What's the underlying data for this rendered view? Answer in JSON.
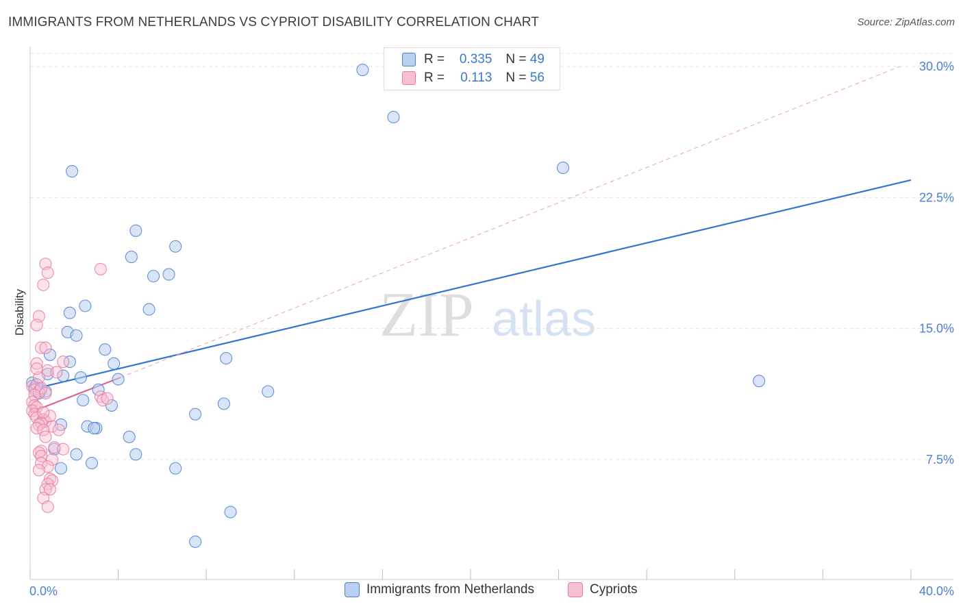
{
  "title": "IMMIGRANTS FROM NETHERLANDS VS CYPRIOT DISABILITY CORRELATION CHART",
  "source": "Source: ZipAtlas.com",
  "watermark": {
    "zip": "ZIP",
    "atlas": "atlas"
  },
  "colors": {
    "blue": "#4a7fd1",
    "blue_fill": "#b9d0f0",
    "blue_line": "#2f74d0",
    "pink": "#e87aa0",
    "pink_fill": "#f7bfd2",
    "pink_line": "#e0628f",
    "grid": "#e3e3e3"
  },
  "legend": {
    "rows": [
      {
        "r_label": "R =",
        "r_value": "0.335",
        "n_label": "N =",
        "n_value": "49"
      },
      {
        "r_label": "R =",
        "r_value": "0.113",
        "n_label": "N =",
        "n_value": "56"
      }
    ]
  },
  "bottom_legend": {
    "series1": "Immigrants from Netherlands",
    "series2": "Cypriots"
  },
  "chart_data": {
    "type": "scatter",
    "title": "IMMIGRANTS FROM NETHERLANDS VS CYPRIOT DISABILITY CORRELATION CHART",
    "xlabel": "",
    "ylabel": "Disability",
    "xlim": [
      0,
      40
    ],
    "ylim": [
      0,
      31
    ],
    "x_tick_labels": [
      "0.0%",
      "40.0%"
    ],
    "y_ticks": [
      7.5,
      15.0,
      22.5,
      30.0
    ],
    "y_tick_labels": [
      "7.5%",
      "15.0%",
      "22.5%",
      "30.0%"
    ],
    "series": [
      {
        "name": "Immigrants from Netherlands",
        "r": 0.335,
        "n": 49,
        "points": [
          [
            15.1,
            29.8
          ],
          [
            16.5,
            27.1
          ],
          [
            1.9,
            24.0
          ],
          [
            24.2,
            24.2
          ],
          [
            4.8,
            20.6
          ],
          [
            6.6,
            19.7
          ],
          [
            4.6,
            19.1
          ],
          [
            6.3,
            18.1
          ],
          [
            5.6,
            18.0
          ],
          [
            2.5,
            16.3
          ],
          [
            5.4,
            16.1
          ],
          [
            1.8,
            15.9
          ],
          [
            1.7,
            14.8
          ],
          [
            2.1,
            14.6
          ],
          [
            3.4,
            13.8
          ],
          [
            0.9,
            13.5
          ],
          [
            1.8,
            13.1
          ],
          [
            3.8,
            13.0
          ],
          [
            8.9,
            13.3
          ],
          [
            0.8,
            12.4
          ],
          [
            1.5,
            12.3
          ],
          [
            2.3,
            12.2
          ],
          [
            4.0,
            12.1
          ],
          [
            0.1,
            11.9
          ],
          [
            0.2,
            11.6
          ],
          [
            0.5,
            11.5
          ],
          [
            3.1,
            11.5
          ],
          [
            0.7,
            11.4
          ],
          [
            10.8,
            11.4
          ],
          [
            2.4,
            10.9
          ],
          [
            33.1,
            12.0
          ],
          [
            8.8,
            10.7
          ],
          [
            3.7,
            10.6
          ],
          [
            7.5,
            10.1
          ],
          [
            1.4,
            9.5
          ],
          [
            2.6,
            9.4
          ],
          [
            3.0,
            9.3
          ],
          [
            2.9,
            9.3
          ],
          [
            4.5,
            8.8
          ],
          [
            1.1,
            8.1
          ],
          [
            2.1,
            7.8
          ],
          [
            4.8,
            7.8
          ],
          [
            2.8,
            7.3
          ],
          [
            1.4,
            7.0
          ],
          [
            6.6,
            7.0
          ],
          [
            9.1,
            4.5
          ],
          [
            7.5,
            2.8
          ],
          [
            0.3,
            11.8
          ],
          [
            0.4,
            11.3
          ]
        ]
      },
      {
        "name": "Cypriots",
        "r": 0.113,
        "n": 56,
        "points": [
          [
            0.7,
            18.7
          ],
          [
            3.2,
            18.4
          ],
          [
            0.8,
            18.2
          ],
          [
            0.6,
            17.5
          ],
          [
            0.4,
            15.7
          ],
          [
            0.3,
            15.2
          ],
          [
            0.5,
            13.9
          ],
          [
            0.7,
            13.9
          ],
          [
            1.5,
            13.1
          ],
          [
            0.3,
            13.0
          ],
          [
            0.8,
            12.6
          ],
          [
            0.4,
            12.2
          ],
          [
            0.1,
            11.7
          ],
          [
            0.2,
            11.5
          ],
          [
            0.4,
            11.4
          ],
          [
            0.5,
            11.6
          ],
          [
            0.7,
            11.3
          ],
          [
            0.2,
            11.2
          ],
          [
            3.2,
            11.1
          ],
          [
            3.3,
            10.9
          ],
          [
            0.1,
            10.8
          ],
          [
            0.2,
            10.6
          ],
          [
            0.3,
            10.5
          ],
          [
            0.1,
            10.3
          ],
          [
            0.2,
            10.1
          ],
          [
            0.3,
            9.9
          ],
          [
            0.6,
            9.8
          ],
          [
            0.7,
            9.7
          ],
          [
            0.5,
            9.6
          ],
          [
            0.4,
            9.5
          ],
          [
            1.0,
            9.4
          ],
          [
            0.3,
            9.3
          ],
          [
            0.6,
            9.2
          ],
          [
            1.3,
            9.2
          ],
          [
            0.7,
            8.8
          ],
          [
            1.1,
            8.2
          ],
          [
            0.5,
            8.0
          ],
          [
            1.5,
            8.1
          ],
          [
            0.4,
            7.9
          ],
          [
            0.5,
            7.7
          ],
          [
            1.0,
            7.5
          ],
          [
            0.5,
            7.3
          ],
          [
            0.8,
            7.1
          ],
          [
            0.4,
            6.9
          ],
          [
            0.9,
            6.4
          ],
          [
            1.0,
            6.3
          ],
          [
            0.8,
            6.1
          ],
          [
            0.7,
            5.8
          ],
          [
            0.9,
            5.8
          ],
          [
            0.6,
            5.3
          ],
          [
            0.8,
            4.8
          ],
          [
            3.5,
            11.0
          ],
          [
            0.3,
            12.7
          ],
          [
            0.9,
            10.0
          ],
          [
            1.2,
            12.5
          ],
          [
            0.6,
            10.2
          ]
        ]
      }
    ],
    "trend_lines": [
      {
        "series": "Immigrants from Netherlands",
        "style": "solid",
        "from": [
          0,
          11.5
        ],
        "to": [
          40,
          23.5
        ]
      },
      {
        "series": "Cypriots",
        "style": "solid",
        "from": [
          0,
          10.2
        ],
        "to": [
          4.1,
          12.2
        ]
      },
      {
        "series": "Cypriots",
        "style": "dashed",
        "from": [
          4.1,
          12.2
        ],
        "to": [
          39.5,
          30.0
        ]
      }
    ]
  }
}
